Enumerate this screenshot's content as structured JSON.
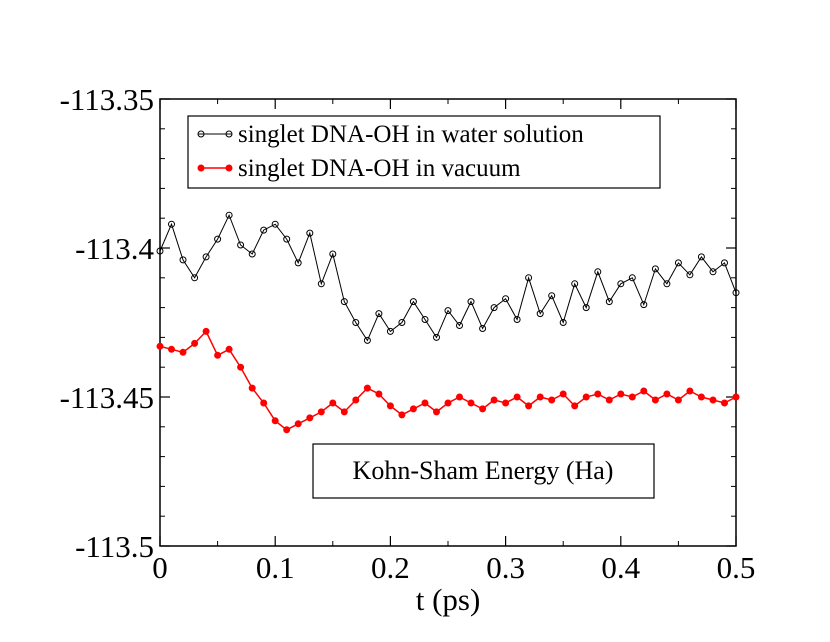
{
  "chart_data": {
    "type": "line",
    "title": "",
    "xlabel": "t (ps)",
    "ylabel": "",
    "xlim": [
      0,
      0.5
    ],
    "ylim": [
      -113.5,
      -113.35
    ],
    "xticks": [
      0,
      0.1,
      0.2,
      0.3,
      0.4,
      0.5
    ],
    "xtick_labels": [
      "0",
      "0.1",
      "0.2",
      "0.3",
      "0.4",
      "0.5"
    ],
    "yticks": [
      -113.5,
      -113.45,
      -113.4,
      -113.35
    ],
    "ytick_labels": [
      "-113.5",
      "-113.45",
      "-113.4",
      "-113.35"
    ],
    "grid": false,
    "legend_position": "top-right",
    "annotation": "Kohn-Sham Energy (Ha)",
    "series": [
      {
        "name": "singlet DNA-OH in water solution",
        "color": "#000000",
        "marker": "open-circle",
        "x": [
          0,
          0.01,
          0.02,
          0.03,
          0.04,
          0.05,
          0.06,
          0.07,
          0.08,
          0.09,
          0.1,
          0.11,
          0.12,
          0.13,
          0.14,
          0.15,
          0.16,
          0.17,
          0.18,
          0.19,
          0.2,
          0.21,
          0.22,
          0.23,
          0.24,
          0.25,
          0.26,
          0.27,
          0.28,
          0.29,
          0.3,
          0.31,
          0.32,
          0.33,
          0.34,
          0.35,
          0.36,
          0.37,
          0.38,
          0.39,
          0.4,
          0.41,
          0.42,
          0.43,
          0.44,
          0.45,
          0.46,
          0.47,
          0.48,
          0.49,
          0.5
        ],
        "values": [
          -113.401,
          -113.392,
          -113.404,
          -113.41,
          -113.403,
          -113.397,
          -113.389,
          -113.399,
          -113.402,
          -113.394,
          -113.392,
          -113.397,
          -113.405,
          -113.395,
          -113.412,
          -113.402,
          -113.418,
          -113.425,
          -113.431,
          -113.422,
          -113.428,
          -113.425,
          -113.418,
          -113.424,
          -113.43,
          -113.421,
          -113.426,
          -113.418,
          -113.427,
          -113.42,
          -113.417,
          -113.424,
          -113.41,
          -113.422,
          -113.416,
          -113.425,
          -113.412,
          -113.42,
          -113.408,
          -113.418,
          -113.412,
          -113.41,
          -113.419,
          -113.407,
          -113.412,
          -113.405,
          -113.409,
          -113.403,
          -113.408,
          -113.405,
          -113.415
        ]
      },
      {
        "name": "singlet DNA-OH in vacuum",
        "color": "#ff0000",
        "marker": "filled-circle",
        "x": [
          0,
          0.01,
          0.02,
          0.03,
          0.04,
          0.05,
          0.06,
          0.07,
          0.08,
          0.09,
          0.1,
          0.11,
          0.12,
          0.13,
          0.14,
          0.15,
          0.16,
          0.17,
          0.18,
          0.19,
          0.2,
          0.21,
          0.22,
          0.23,
          0.24,
          0.25,
          0.26,
          0.27,
          0.28,
          0.29,
          0.3,
          0.31,
          0.32,
          0.33,
          0.34,
          0.35,
          0.36,
          0.37,
          0.38,
          0.39,
          0.4,
          0.41,
          0.42,
          0.43,
          0.44,
          0.45,
          0.46,
          0.47,
          0.48,
          0.49,
          0.5
        ],
        "values": [
          -113.433,
          -113.434,
          -113.435,
          -113.432,
          -113.428,
          -113.436,
          -113.434,
          -113.44,
          -113.447,
          -113.452,
          -113.458,
          -113.461,
          -113.459,
          -113.457,
          -113.455,
          -113.452,
          -113.455,
          -113.451,
          -113.447,
          -113.449,
          -113.453,
          -113.456,
          -113.454,
          -113.452,
          -113.455,
          -113.452,
          -113.45,
          -113.452,
          -113.454,
          -113.451,
          -113.452,
          -113.45,
          -113.453,
          -113.45,
          -113.451,
          -113.449,
          -113.453,
          -113.45,
          -113.449,
          -113.451,
          -113.449,
          -113.45,
          -113.448,
          -113.451,
          -113.449,
          -113.451,
          -113.448,
          -113.45,
          -113.451,
          -113.452,
          -113.45
        ]
      }
    ]
  }
}
